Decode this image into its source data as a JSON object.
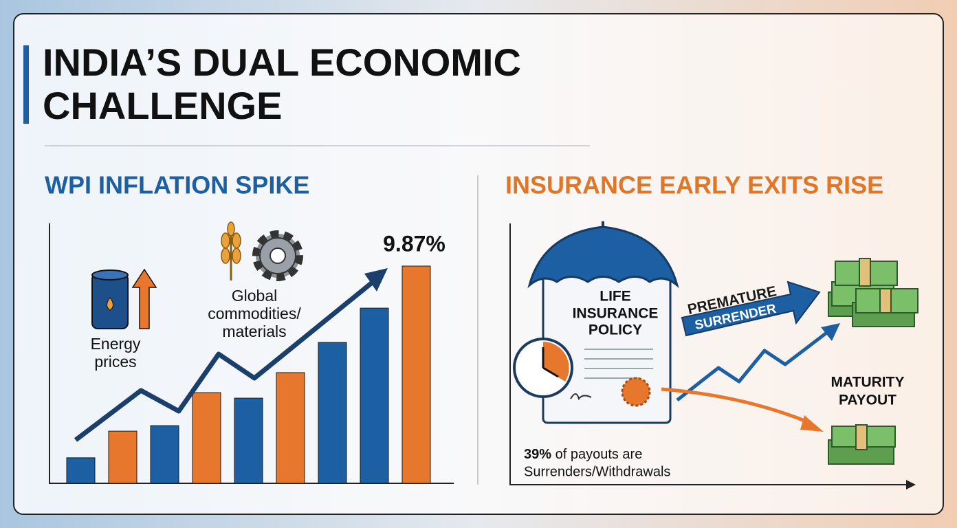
{
  "header": {
    "title_lines": [
      "INDIA’S DUAL ECONOMIC",
      "CHALLENGE"
    ]
  },
  "chart_data": {
    "type": "bar",
    "title": "WPI INFLATION SPIKE",
    "values": [
      1.16,
      2.37,
      2.62,
      4.12,
      3.87,
      5.03,
      6.4,
      7.96,
      9.87
    ],
    "value_labels": [
      null,
      null,
      null,
      null,
      null,
      null,
      null,
      null,
      "9.87%"
    ],
    "colors": [
      "#1d5fa3",
      "#e8772e",
      "#1d5fa3",
      "#e8772e",
      "#1d5fa3",
      "#e8772e",
      "#1d5fa3",
      "#1d5fa3",
      "#e8772e"
    ],
    "ylim": [
      0,
      11.65
    ],
    "annotations": [
      {
        "lines": [
          "Energy",
          "prices"
        ]
      },
      {
        "lines": [
          "Global",
          "commodities/",
          "materials"
        ]
      }
    ]
  },
  "insurance": {
    "title": "INSURANCE EARLY EXITS RISE",
    "policy_lines": [
      "LIFE",
      "INSURANCE",
      "POLICY"
    ],
    "arrow_lines": [
      "PREMATURE",
      "SURRENDER"
    ],
    "maturity_lines": [
      "MATURITY",
      "PAYOUT"
    ],
    "stat_value": "39%",
    "stat_text": "of payouts are",
    "stat_text_2": "Surrenders/Withdrawals"
  }
}
